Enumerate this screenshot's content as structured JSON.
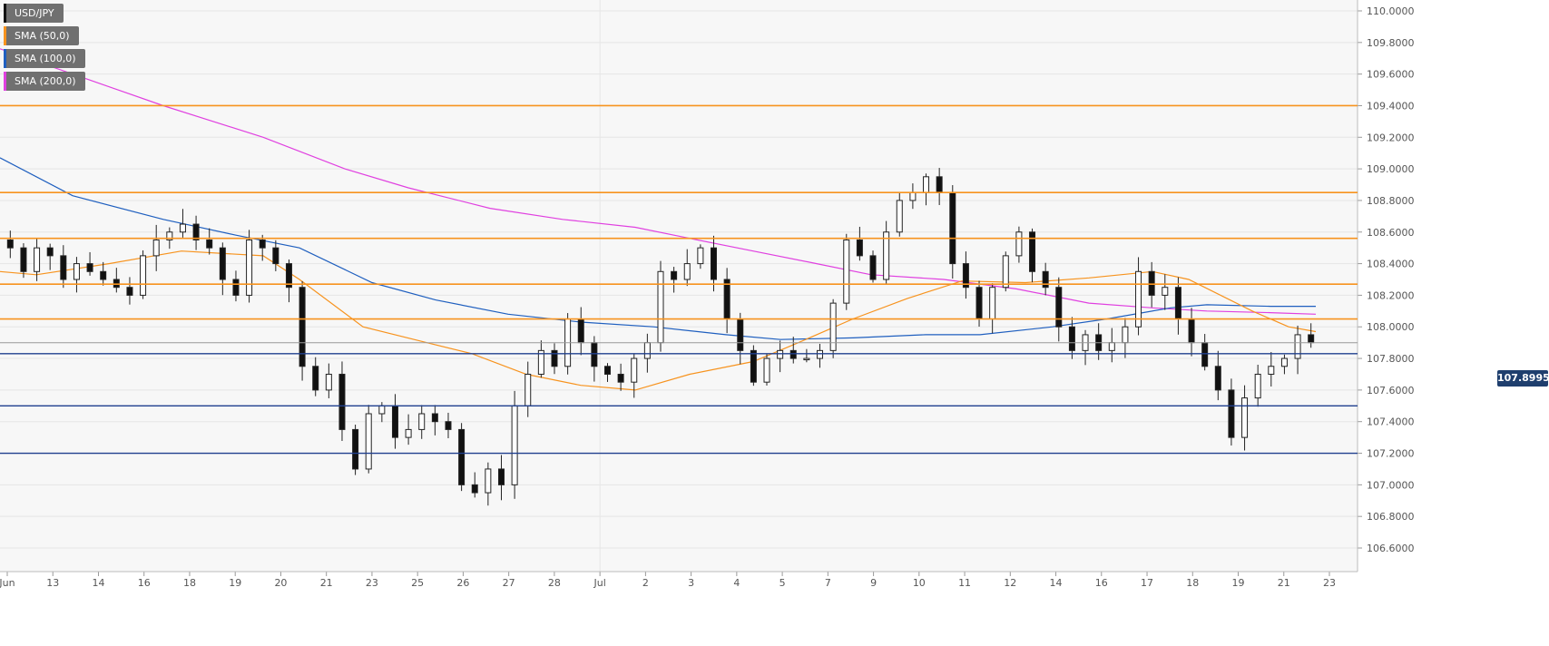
{
  "legend": [
    {
      "label": "USD/JPY",
      "color": "#111111"
    },
    {
      "label": "SMA (50,0)",
      "color": "#f7931e"
    },
    {
      "label": "SMA (100,0)",
      "color": "#1f5fbf"
    },
    {
      "label": "SMA (200,0)",
      "color": "#e040e0"
    }
  ],
  "price_tag": "107.8995",
  "chart_data": {
    "type": "candlestick",
    "title": "",
    "symbol": "USD/JPY",
    "y_range": [
      106.45,
      110.05
    ],
    "y_ticks": [
      "110.0000",
      "109.8000",
      "109.6000",
      "109.4000",
      "109.2000",
      "109.0000",
      "108.8000",
      "108.6000",
      "108.4000",
      "108.2000",
      "108.0000",
      "107.8000",
      "107.6000",
      "107.4000",
      "107.2000",
      "107.0000",
      "106.8000",
      "106.6000"
    ],
    "y_tick_values": [
      110.0,
      109.8,
      109.6,
      109.4,
      109.2,
      109.0,
      108.8,
      108.6,
      108.4,
      108.2,
      108.0,
      107.8,
      107.6,
      107.4,
      107.2,
      107.0,
      106.8,
      106.6
    ],
    "x_labels": [
      "Jun",
      "13",
      "14",
      "16",
      "18",
      "19",
      "20",
      "21",
      "23",
      "25",
      "26",
      "27",
      "28",
      "Jul",
      "2",
      "3",
      "4",
      "5",
      "7",
      "9",
      "10",
      "11",
      "12",
      "14",
      "16",
      "17",
      "18",
      "19",
      "21",
      "23"
    ],
    "grid": true,
    "current_price": 107.8995,
    "resistance_levels": [
      109.4,
      108.85,
      108.56,
      108.27,
      108.05
    ],
    "support_levels": [
      107.83,
      107.5,
      107.2
    ],
    "price_path": [
      108.55,
      108.5,
      108.35,
      108.5,
      108.45,
      108.3,
      108.4,
      108.35,
      108.3,
      108.25,
      108.2,
      108.45,
      108.55,
      108.6,
      108.65,
      108.55,
      108.5,
      108.3,
      108.2,
      108.55,
      108.5,
      108.4,
      108.25,
      107.75,
      107.6,
      107.7,
      107.35,
      107.1,
      107.45,
      107.5,
      107.3,
      107.35,
      107.45,
      107.4,
      107.35,
      107.0,
      106.95,
      107.1,
      107.0,
      107.5,
      107.7,
      107.85,
      107.75,
      108.05,
      107.9,
      107.75,
      107.7,
      107.65,
      107.8,
      107.9,
      108.35,
      108.3,
      108.4,
      108.5,
      108.3,
      108.05,
      107.85,
      107.65,
      107.8,
      107.85,
      107.8,
      107.8,
      107.85,
      108.15,
      108.55,
      108.45,
      108.3,
      108.6,
      108.8,
      108.85,
      108.95,
      108.85,
      108.4,
      108.25,
      108.05,
      108.25,
      108.45,
      108.6,
      108.35,
      108.25,
      108.0,
      107.85,
      107.95,
      107.85,
      107.9,
      108.0,
      108.35,
      108.2,
      108.25,
      108.05,
      107.9,
      107.75,
      107.6,
      107.3,
      107.55,
      107.7,
      107.75,
      107.8,
      107.95,
      107.9
    ],
    "sma50": [
      [
        0,
        108.35
      ],
      [
        40,
        108.33
      ],
      [
        120,
        108.4
      ],
      [
        200,
        108.48
      ],
      [
        290,
        108.45
      ],
      [
        330,
        108.3
      ],
      [
        400,
        108.0
      ],
      [
        470,
        107.9
      ],
      [
        520,
        107.83
      ],
      [
        580,
        107.7
      ],
      [
        640,
        107.63
      ],
      [
        700,
        107.6
      ],
      [
        760,
        107.7
      ],
      [
        830,
        107.78
      ],
      [
        880,
        107.9
      ],
      [
        940,
        108.05
      ],
      [
        1000,
        108.18
      ],
      [
        1060,
        108.29
      ],
      [
        1130,
        108.28
      ],
      [
        1200,
        108.31
      ],
      [
        1270,
        108.35
      ],
      [
        1310,
        108.3
      ],
      [
        1380,
        108.1
      ],
      [
        1420,
        108.0
      ],
      [
        1450,
        107.97
      ]
    ],
    "sma100": [
      [
        0,
        109.07
      ],
      [
        80,
        108.83
      ],
      [
        180,
        108.68
      ],
      [
        260,
        108.58
      ],
      [
        330,
        108.5
      ],
      [
        410,
        108.28
      ],
      [
        480,
        108.17
      ],
      [
        560,
        108.08
      ],
      [
        640,
        108.03
      ],
      [
        720,
        108.0
      ],
      [
        800,
        107.95
      ],
      [
        860,
        107.92
      ],
      [
        940,
        107.93
      ],
      [
        1020,
        107.95
      ],
      [
        1080,
        107.95
      ],
      [
        1160,
        108.0
      ],
      [
        1220,
        108.05
      ],
      [
        1290,
        108.12
      ],
      [
        1330,
        108.14
      ],
      [
        1400,
        108.13
      ],
      [
        1450,
        108.13
      ]
    ],
    "sma200": [
      [
        0,
        109.76
      ],
      [
        80,
        109.6
      ],
      [
        180,
        109.4
      ],
      [
        290,
        109.2
      ],
      [
        380,
        109.0
      ],
      [
        450,
        108.88
      ],
      [
        540,
        108.75
      ],
      [
        620,
        108.68
      ],
      [
        700,
        108.63
      ],
      [
        760,
        108.56
      ],
      [
        830,
        108.48
      ],
      [
        900,
        108.4
      ],
      [
        960,
        108.33
      ],
      [
        1040,
        108.3
      ],
      [
        1120,
        108.24
      ],
      [
        1200,
        108.15
      ],
      [
        1270,
        108.12
      ],
      [
        1330,
        108.1
      ],
      [
        1400,
        108.09
      ],
      [
        1450,
        108.08
      ]
    ]
  }
}
